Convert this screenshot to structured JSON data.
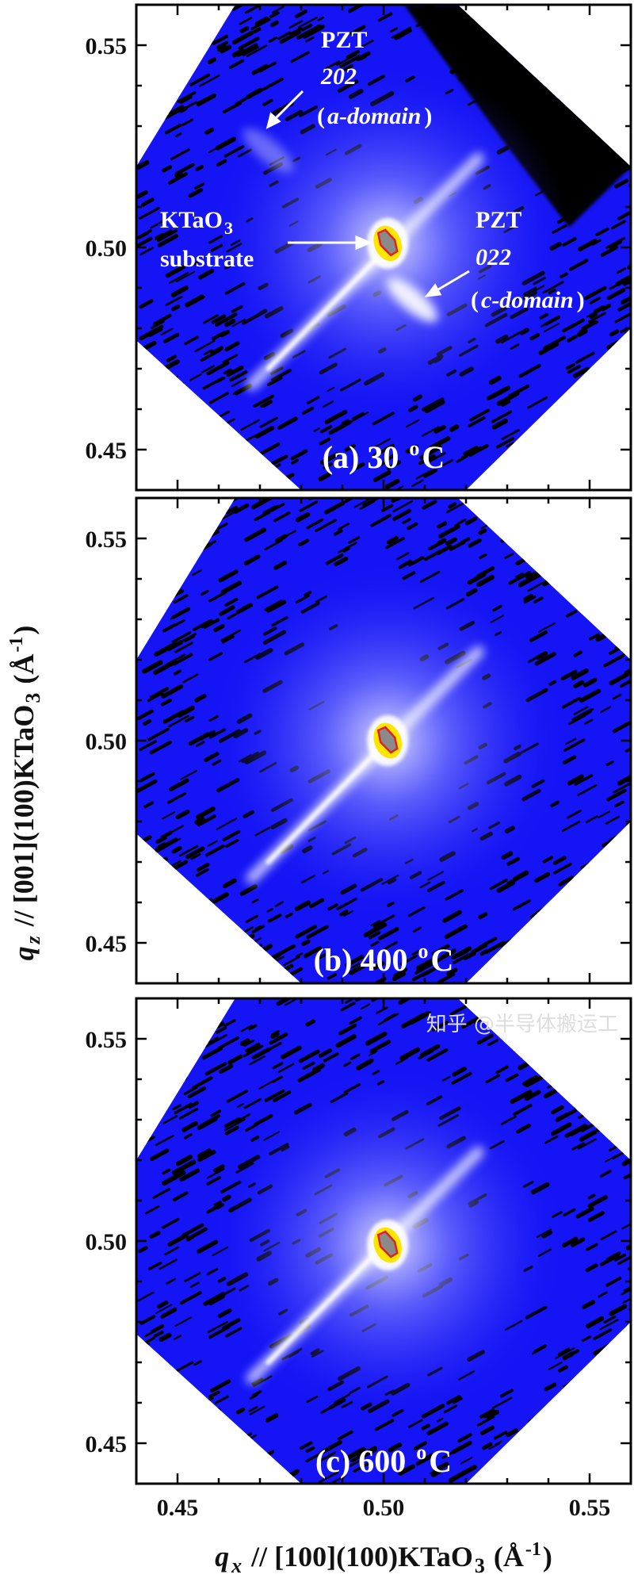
{
  "chart_data": {
    "type": "heatmap",
    "description_type": "reciprocal space map",
    "xlim": [
      0.44,
      0.56
    ],
    "ylim": [
      0.44,
      0.56
    ],
    "x_ticks": [
      "0.45",
      "0.50",
      "0.55"
    ],
    "y_ticks": [
      "0.45",
      "0.50",
      "0.55"
    ],
    "minor_tick_step": 0.01,
    "xlabel": {
      "var": "q",
      "sub": "x",
      "mid": " // [100](100)KTaO",
      "sub2": "3",
      "unit_open": " (Å",
      "sup": "-1",
      "unit_close": ")"
    },
    "ylabel": {
      "var": "q",
      "sub": "z",
      "mid": " // [001](100)KTaO",
      "sub2": "3",
      "unit_open": " (Å",
      "sup": "-1",
      "unit_close": ")"
    },
    "colors": {
      "background": "#1414f5",
      "no_data": "#000000",
      "glow": "#ffffff",
      "high": "#ffe600",
      "saturated": "#8a8a8a",
      "contour": "#e0201c"
    },
    "panels": [
      {
        "label": {
          "pre": "(a) 30 ",
          "deg": "o",
          "post": "C"
        },
        "substrate_peak": [
          0.501,
          0.501
        ],
        "peaks": [
          {
            "name": "PZT 202 a-domain",
            "q": [
              0.472,
              0.524
            ],
            "intensity": 0.35
          },
          {
            "name": "PZT 022 c-domain",
            "q": [
              0.507,
              0.487
            ],
            "intensity": 0.9
          }
        ],
        "annotations": {
          "pzt_a_title": "PZT",
          "pzt_a_index": "202",
          "pzt_a_open": "(",
          "pzt_a_domain": "a-domain",
          "pzt_a_close": ")",
          "substrate_line1": "KTaO",
          "substrate_sub": "3",
          "substrate_line2": "substrate",
          "pzt_c_title": "PZT",
          "pzt_c_index": "022",
          "pzt_c_open": "(",
          "pzt_c_domain": "c-domain",
          "pzt_c_close": ")"
        }
      },
      {
        "label": {
          "pre": "(b) 400 ",
          "deg": "o",
          "post": "C"
        },
        "substrate_peak": [
          0.501,
          0.5
        ],
        "peaks": []
      },
      {
        "label": {
          "pre": "(c) 600 ",
          "deg": "o",
          "post": "C"
        },
        "substrate_peak": [
          0.501,
          0.499
        ],
        "peaks": []
      }
    ]
  },
  "watermark": "知乎 @半导体搬运工"
}
